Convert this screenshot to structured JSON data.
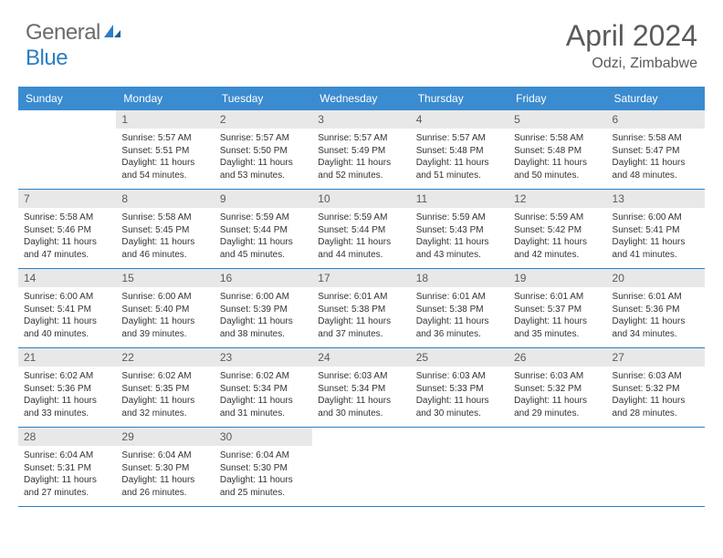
{
  "brand": {
    "part1": "General",
    "part2": "Blue"
  },
  "title": {
    "monthYear": "April 2024",
    "location": "Odzi, Zimbabwe"
  },
  "colors": {
    "headerBg": "#3b8bd0",
    "headerText": "#ffffff",
    "dayNumBg": "#e8e8e8",
    "dayNumText": "#5a5a5a",
    "rowBorder": "#2a7fc4",
    "logoBlue": "#2a7fc4",
    "logoGray": "#6b6b6b",
    "bodyText": "#333333"
  },
  "dayNames": [
    "Sunday",
    "Monday",
    "Tuesday",
    "Wednesday",
    "Thursday",
    "Friday",
    "Saturday"
  ],
  "weeks": [
    [
      {
        "n": "",
        "sr": "",
        "ss": "",
        "dl": ""
      },
      {
        "n": "1",
        "sr": "Sunrise: 5:57 AM",
        "ss": "Sunset: 5:51 PM",
        "dl": "Daylight: 11 hours and 54 minutes."
      },
      {
        "n": "2",
        "sr": "Sunrise: 5:57 AM",
        "ss": "Sunset: 5:50 PM",
        "dl": "Daylight: 11 hours and 53 minutes."
      },
      {
        "n": "3",
        "sr": "Sunrise: 5:57 AM",
        "ss": "Sunset: 5:49 PM",
        "dl": "Daylight: 11 hours and 52 minutes."
      },
      {
        "n": "4",
        "sr": "Sunrise: 5:57 AM",
        "ss": "Sunset: 5:48 PM",
        "dl": "Daylight: 11 hours and 51 minutes."
      },
      {
        "n": "5",
        "sr": "Sunrise: 5:58 AM",
        "ss": "Sunset: 5:48 PM",
        "dl": "Daylight: 11 hours and 50 minutes."
      },
      {
        "n": "6",
        "sr": "Sunrise: 5:58 AM",
        "ss": "Sunset: 5:47 PM",
        "dl": "Daylight: 11 hours and 48 minutes."
      }
    ],
    [
      {
        "n": "7",
        "sr": "Sunrise: 5:58 AM",
        "ss": "Sunset: 5:46 PM",
        "dl": "Daylight: 11 hours and 47 minutes."
      },
      {
        "n": "8",
        "sr": "Sunrise: 5:58 AM",
        "ss": "Sunset: 5:45 PM",
        "dl": "Daylight: 11 hours and 46 minutes."
      },
      {
        "n": "9",
        "sr": "Sunrise: 5:59 AM",
        "ss": "Sunset: 5:44 PM",
        "dl": "Daylight: 11 hours and 45 minutes."
      },
      {
        "n": "10",
        "sr": "Sunrise: 5:59 AM",
        "ss": "Sunset: 5:44 PM",
        "dl": "Daylight: 11 hours and 44 minutes."
      },
      {
        "n": "11",
        "sr": "Sunrise: 5:59 AM",
        "ss": "Sunset: 5:43 PM",
        "dl": "Daylight: 11 hours and 43 minutes."
      },
      {
        "n": "12",
        "sr": "Sunrise: 5:59 AM",
        "ss": "Sunset: 5:42 PM",
        "dl": "Daylight: 11 hours and 42 minutes."
      },
      {
        "n": "13",
        "sr": "Sunrise: 6:00 AM",
        "ss": "Sunset: 5:41 PM",
        "dl": "Daylight: 11 hours and 41 minutes."
      }
    ],
    [
      {
        "n": "14",
        "sr": "Sunrise: 6:00 AM",
        "ss": "Sunset: 5:41 PM",
        "dl": "Daylight: 11 hours and 40 minutes."
      },
      {
        "n": "15",
        "sr": "Sunrise: 6:00 AM",
        "ss": "Sunset: 5:40 PM",
        "dl": "Daylight: 11 hours and 39 minutes."
      },
      {
        "n": "16",
        "sr": "Sunrise: 6:00 AM",
        "ss": "Sunset: 5:39 PM",
        "dl": "Daylight: 11 hours and 38 minutes."
      },
      {
        "n": "17",
        "sr": "Sunrise: 6:01 AM",
        "ss": "Sunset: 5:38 PM",
        "dl": "Daylight: 11 hours and 37 minutes."
      },
      {
        "n": "18",
        "sr": "Sunrise: 6:01 AM",
        "ss": "Sunset: 5:38 PM",
        "dl": "Daylight: 11 hours and 36 minutes."
      },
      {
        "n": "19",
        "sr": "Sunrise: 6:01 AM",
        "ss": "Sunset: 5:37 PM",
        "dl": "Daylight: 11 hours and 35 minutes."
      },
      {
        "n": "20",
        "sr": "Sunrise: 6:01 AM",
        "ss": "Sunset: 5:36 PM",
        "dl": "Daylight: 11 hours and 34 minutes."
      }
    ],
    [
      {
        "n": "21",
        "sr": "Sunrise: 6:02 AM",
        "ss": "Sunset: 5:36 PM",
        "dl": "Daylight: 11 hours and 33 minutes."
      },
      {
        "n": "22",
        "sr": "Sunrise: 6:02 AM",
        "ss": "Sunset: 5:35 PM",
        "dl": "Daylight: 11 hours and 32 minutes."
      },
      {
        "n": "23",
        "sr": "Sunrise: 6:02 AM",
        "ss": "Sunset: 5:34 PM",
        "dl": "Daylight: 11 hours and 31 minutes."
      },
      {
        "n": "24",
        "sr": "Sunrise: 6:03 AM",
        "ss": "Sunset: 5:34 PM",
        "dl": "Daylight: 11 hours and 30 minutes."
      },
      {
        "n": "25",
        "sr": "Sunrise: 6:03 AM",
        "ss": "Sunset: 5:33 PM",
        "dl": "Daylight: 11 hours and 30 minutes."
      },
      {
        "n": "26",
        "sr": "Sunrise: 6:03 AM",
        "ss": "Sunset: 5:32 PM",
        "dl": "Daylight: 11 hours and 29 minutes."
      },
      {
        "n": "27",
        "sr": "Sunrise: 6:03 AM",
        "ss": "Sunset: 5:32 PM",
        "dl": "Daylight: 11 hours and 28 minutes."
      }
    ],
    [
      {
        "n": "28",
        "sr": "Sunrise: 6:04 AM",
        "ss": "Sunset: 5:31 PM",
        "dl": "Daylight: 11 hours and 27 minutes."
      },
      {
        "n": "29",
        "sr": "Sunrise: 6:04 AM",
        "ss": "Sunset: 5:30 PM",
        "dl": "Daylight: 11 hours and 26 minutes."
      },
      {
        "n": "30",
        "sr": "Sunrise: 6:04 AM",
        "ss": "Sunset: 5:30 PM",
        "dl": "Daylight: 11 hours and 25 minutes."
      },
      {
        "n": "",
        "sr": "",
        "ss": "",
        "dl": ""
      },
      {
        "n": "",
        "sr": "",
        "ss": "",
        "dl": ""
      },
      {
        "n": "",
        "sr": "",
        "ss": "",
        "dl": ""
      },
      {
        "n": "",
        "sr": "",
        "ss": "",
        "dl": ""
      }
    ]
  ]
}
